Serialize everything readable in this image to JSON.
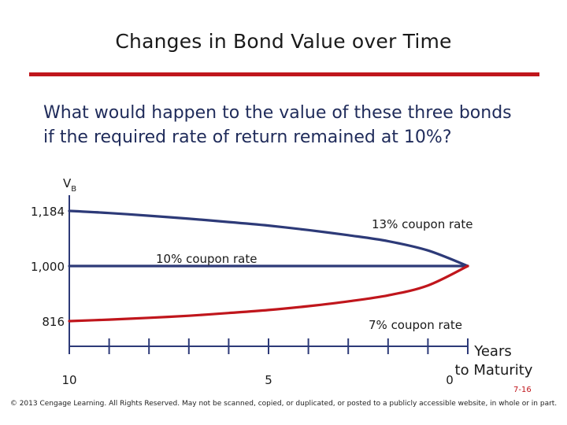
{
  "slide": {
    "title": "Changes in Bond Value over Time",
    "question_lines": [
      "What would happen to the value of these three bonds",
      "if the required rate of return remained at 10%?"
    ],
    "footer": "© 2013 Cengage Learning. All Rights Reserved. May not be scanned, copied, or duplicated, or posted to a publicly accessible website, in whole or in part.",
    "slide_number": "7-16",
    "accent_color": "#c0161c",
    "text_color": "#1f2b5a"
  },
  "chart_data": {
    "type": "line",
    "ylabel_main": "V",
    "ylabel_sub": "B",
    "xlabel_lines": [
      "Years",
      "to Maturity"
    ],
    "xlim": [
      10,
      0
    ],
    "ylim": [
      816,
      1184
    ],
    "x_ticks": [
      10,
      9,
      8,
      7,
      6,
      5,
      4,
      3,
      2,
      1,
      0
    ],
    "x_tick_labels": [
      {
        "x": 10,
        "label": "10"
      },
      {
        "x": 5,
        "label": "5"
      },
      {
        "x": 0,
        "label": "0"
      }
    ],
    "y_tick_labels": [
      {
        "y": 1184,
        "label": "1,184"
      },
      {
        "y": 1000,
        "label": "1,000"
      },
      {
        "y": 816,
        "label": "816"
      }
    ],
    "series": [
      {
        "name": "13% coupon rate",
        "color": "#2d3a78",
        "x": [
          10,
          9,
          8,
          7,
          6,
          5,
          4,
          3,
          2,
          1,
          0
        ],
        "y": [
          1184,
          1177,
          1168,
          1158,
          1147,
          1135,
          1120,
          1103,
          1083,
          1052,
          1000
        ]
      },
      {
        "name": "10% coupon rate",
        "color": "#2d3a78",
        "x": [
          10,
          0
        ],
        "y": [
          1000,
          1000
        ]
      },
      {
        "name": "7% coupon rate",
        "color": "#c0161c",
        "x": [
          10,
          9,
          8,
          7,
          6,
          5,
          4,
          3,
          2,
          1,
          0
        ],
        "y": [
          816,
          821,
          827,
          834,
          843,
          853,
          866,
          882,
          902,
          935,
          1000
        ]
      }
    ]
  }
}
